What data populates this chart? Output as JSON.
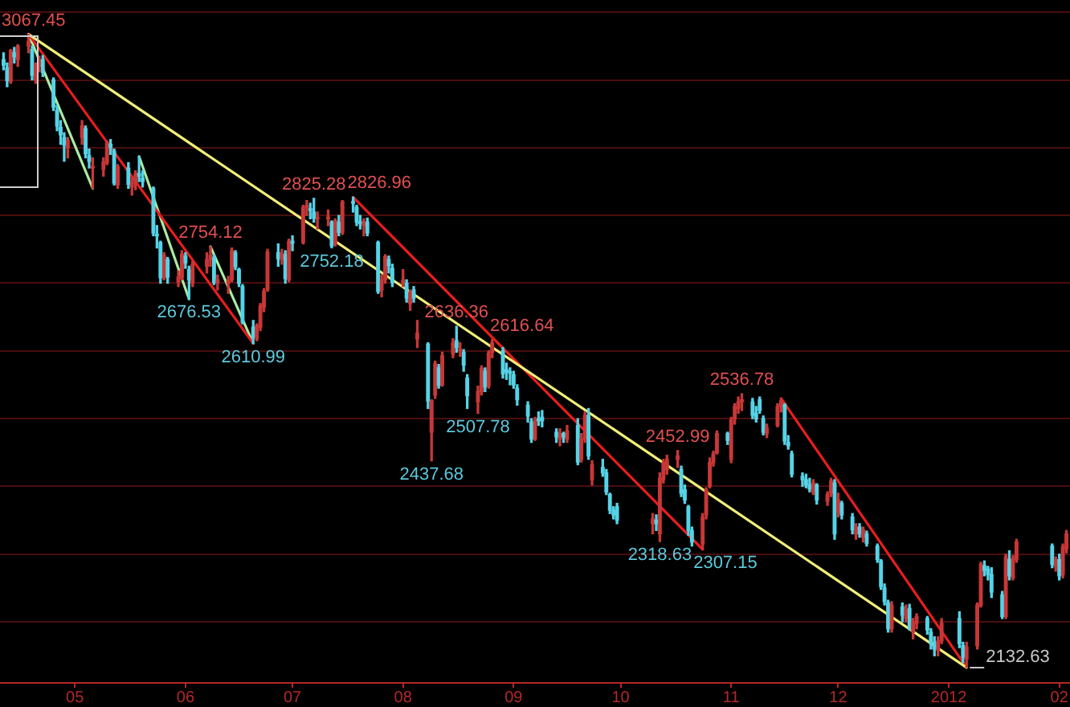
{
  "chart_data": {
    "type": "candlestick",
    "x": [
      "2011-04-11",
      "2011-04-12",
      "2011-04-13",
      "2011-04-14",
      "2011-04-15",
      "2011-04-18",
      "2011-04-19",
      "2011-04-20",
      "2011-04-21",
      "2011-04-22",
      "2011-04-25",
      "2011-04-26",
      "2011-04-27",
      "2011-04-28",
      "2011-04-29",
      "2011-05-03",
      "2011-05-04",
      "2011-05-05",
      "2011-05-06",
      "2011-05-09",
      "2011-05-10",
      "2011-05-11",
      "2011-05-12",
      "2011-05-13",
      "2011-05-16",
      "2011-05-17",
      "2011-05-18",
      "2011-05-19",
      "2011-05-20",
      "2011-05-23",
      "2011-05-24",
      "2011-05-25",
      "2011-05-26",
      "2011-05-27",
      "2011-05-30",
      "2011-05-31",
      "2011-06-01",
      "2011-06-02",
      "2011-06-03",
      "2011-06-07",
      "2011-06-08",
      "2011-06-09",
      "2011-06-10",
      "2011-06-13",
      "2011-06-14",
      "2011-06-15",
      "2011-06-16",
      "2011-06-17",
      "2011-06-20",
      "2011-06-21",
      "2011-06-22",
      "2011-06-23",
      "2011-06-24",
      "2011-06-27",
      "2011-06-28",
      "2011-06-29",
      "2011-06-30",
      "2011-07-01",
      "2011-07-04",
      "2011-07-05",
      "2011-07-06",
      "2011-07-07",
      "2011-07-08",
      "2011-07-11",
      "2011-07-12",
      "2011-07-13",
      "2011-07-14",
      "2011-07-15",
      "2011-07-18",
      "2011-07-19",
      "2011-07-20",
      "2011-07-21",
      "2011-07-22",
      "2011-07-25",
      "2011-07-26",
      "2011-07-27",
      "2011-07-28",
      "2011-07-29",
      "2011-08-01",
      "2011-08-02",
      "2011-08-03",
      "2011-08-04",
      "2011-08-05",
      "2011-08-08",
      "2011-08-09",
      "2011-08-10",
      "2011-08-11",
      "2011-08-12",
      "2011-08-15",
      "2011-08-16",
      "2011-08-17",
      "2011-08-18",
      "2011-08-19",
      "2011-08-22",
      "2011-08-23",
      "2011-08-24",
      "2011-08-25",
      "2011-08-26",
      "2011-08-29",
      "2011-08-30",
      "2011-08-31",
      "2011-09-01",
      "2011-09-02",
      "2011-09-05",
      "2011-09-06",
      "2011-09-07",
      "2011-09-08",
      "2011-09-09",
      "2011-09-13",
      "2011-09-14",
      "2011-09-15",
      "2011-09-16",
      "2011-09-19",
      "2011-09-20",
      "2011-09-21",
      "2011-09-22",
      "2011-09-23",
      "2011-09-26",
      "2011-09-27",
      "2011-09-28",
      "2011-09-29",
      "2011-09-30",
      "2011-10-10",
      "2011-10-11",
      "2011-10-12",
      "2011-10-13",
      "2011-10-14",
      "2011-10-17",
      "2011-10-18",
      "2011-10-19",
      "2011-10-20",
      "2011-10-21",
      "2011-10-24",
      "2011-10-25",
      "2011-10-26",
      "2011-10-27",
      "2011-10-28",
      "2011-10-31",
      "2011-11-01",
      "2011-11-02",
      "2011-11-03",
      "2011-11-04",
      "2011-11-07",
      "2011-11-08",
      "2011-11-09",
      "2011-11-10",
      "2011-11-11",
      "2011-11-14",
      "2011-11-15",
      "2011-11-16",
      "2011-11-17",
      "2011-11-18",
      "2011-11-21",
      "2011-11-22",
      "2011-11-23",
      "2011-11-24",
      "2011-11-25",
      "2011-11-28",
      "2011-11-29",
      "2011-11-30",
      "2011-12-01",
      "2011-12-02",
      "2011-12-05",
      "2011-12-06",
      "2011-12-07",
      "2011-12-08",
      "2011-12-09",
      "2011-12-12",
      "2011-12-13",
      "2011-12-14",
      "2011-12-15",
      "2011-12-16",
      "2011-12-19",
      "2011-12-20",
      "2011-12-21",
      "2011-12-22",
      "2011-12-23",
      "2011-12-26",
      "2011-12-27",
      "2011-12-28",
      "2011-12-29",
      "2011-12-30",
      "2012-01-04",
      "2012-01-05",
      "2012-01-06",
      "2012-01-09",
      "2012-01-10",
      "2012-01-11",
      "2012-01-12",
      "2012-01-13",
      "2012-01-16",
      "2012-01-17",
      "2012-01-18",
      "2012-01-19",
      "2012-01-20",
      "2012-01-30",
      "2012-01-31",
      "2012-02-01",
      "2012-02-02",
      "2012-02-03"
    ],
    "ohlc": [
      [
        3030,
        3040,
        3015,
        3022
      ],
      [
        3018,
        3025,
        2990,
        2999
      ],
      [
        2998,
        3045,
        2995,
        3043
      ],
      [
        3040,
        3048,
        3025,
        3034
      ],
      [
        3030,
        3052,
        3020,
        3050
      ],
      [
        3050,
        3067.45,
        3040,
        3057
      ],
      [
        3045,
        3050,
        3000,
        3007
      ],
      [
        3000,
        3025,
        2995,
        3023
      ],
      [
        3022,
        3035,
        3012,
        3030
      ],
      [
        3030,
        3036,
        3005,
        3011
      ],
      [
        3000,
        3003,
        2955,
        2960
      ],
      [
        2955,
        2962,
        2925,
        2932
      ],
      [
        2930,
        2940,
        2905,
        2919
      ],
      [
        2915,
        2922,
        2880,
        2904
      ],
      [
        2900,
        2915,
        2885,
        2911
      ],
      [
        2915,
        2940,
        2905,
        2932
      ],
      [
        2928,
        2932,
        2885,
        2891
      ],
      [
        2888,
        2898,
        2870,
        2880
      ],
      [
        2870,
        2885,
        2840,
        2872
      ],
      [
        2868,
        2885,
        2858,
        2879
      ],
      [
        2878,
        2910,
        2875,
        2907
      ],
      [
        2905,
        2912,
        2890,
        2900
      ],
      [
        2895,
        2898,
        2845,
        2848
      ],
      [
        2845,
        2875,
        2840,
        2872
      ],
      [
        2870,
        2878,
        2840,
        2846
      ],
      [
        2842,
        2855,
        2830,
        2848
      ],
      [
        2848,
        2866,
        2838,
        2862
      ],
      [
        2862,
        2887,
        2850,
        2858
      ],
      [
        2855,
        2866,
        2842,
        2850
      ],
      [
        2840,
        2842,
        2770,
        2774
      ],
      [
        2772,
        2785,
        2752,
        2770
      ],
      [
        2760,
        2762,
        2700,
        2708
      ],
      [
        2708,
        2745,
        2705,
        2741
      ],
      [
        2735,
        2738,
        2700,
        2709
      ],
      [
        2702,
        2718,
        2695,
        2709
      ],
      [
        2708,
        2748,
        2705,
        2743
      ],
      [
        2740,
        2745,
        2722,
        2730
      ],
      [
        2720,
        2725,
        2676.53,
        2705
      ],
      [
        2700,
        2732,
        2695,
        2728
      ],
      [
        2725,
        2745,
        2715,
        2735
      ],
      [
        2735,
        2754.12,
        2725,
        2741
      ],
      [
        2738,
        2742,
        2698,
        2701
      ],
      [
        2700,
        2712,
        2690,
        2705
      ],
      [
        2700,
        2710,
        2685,
        2704
      ],
      [
        2705,
        2752,
        2702,
        2748
      ],
      [
        2745,
        2748,
        2720,
        2724
      ],
      [
        2720,
        2722,
        2695,
        2700
      ],
      [
        2695,
        2698,
        2640,
        2642
      ],
      [
        2635,
        2645,
        2610.99,
        2621
      ],
      [
        2618,
        2640,
        2615,
        2637
      ],
      [
        2635,
        2670,
        2630,
        2667
      ],
      [
        2665,
        2692,
        2658,
        2688
      ],
      [
        2690,
        2750,
        2688,
        2746
      ],
      [
        2745,
        2758,
        2725,
        2736
      ],
      [
        2735,
        2750,
        2728,
        2744
      ],
      [
        2742,
        2748,
        2700,
        2707
      ],
      [
        2705,
        2765,
        2702,
        2762
      ],
      [
        2762,
        2770,
        2748,
        2759
      ],
      [
        2760,
        2815,
        2758,
        2812
      ],
      [
        2812,
        2822,
        2800,
        2814
      ],
      [
        2810,
        2818,
        2795,
        2807
      ],
      [
        2805,
        2825.28,
        2790,
        2796
      ],
      [
        2795,
        2805,
        2780,
        2797
      ],
      [
        2795,
        2808,
        2785,
        2796
      ],
      [
        2790,
        2792,
        2752.18,
        2755
      ],
      [
        2758,
        2795,
        2755,
        2792
      ],
      [
        2790,
        2800,
        2770,
        2775
      ],
      [
        2775,
        2822,
        2772,
        2820
      ],
      [
        2820,
        2826.96,
        2805,
        2818
      ],
      [
        2812,
        2815,
        2785,
        2790
      ],
      [
        2790,
        2800,
        2780,
        2788
      ],
      [
        2785,
        2795,
        2770,
        2791
      ],
      [
        2790,
        2796,
        2770,
        2774
      ],
      [
        2760,
        2762,
        2685,
        2688
      ],
      [
        2690,
        2712,
        2680,
        2705
      ],
      [
        2705,
        2742,
        2700,
        2739
      ],
      [
        2735,
        2740,
        2715,
        2726
      ],
      [
        2722,
        2728,
        2695,
        2701
      ],
      [
        2700,
        2720,
        2695,
        2705
      ],
      [
        2700,
        2705,
        2672,
        2678
      ],
      [
        2670,
        2690,
        2660,
        2686
      ],
      [
        2690,
        2695,
        2672,
        2678
      ],
      [
        2618,
        2645,
        2605,
        2626
      ],
      [
        2610,
        2612,
        2515,
        2526
      ],
      [
        2480,
        2528,
        2437.68,
        2527
      ],
      [
        2535,
        2585,
        2530,
        2581
      ],
      [
        2575,
        2580,
        2545,
        2549
      ],
      [
        2550,
        2598,
        2548,
        2593
      ],
      [
        2595,
        2618,
        2590,
        2612
      ],
      [
        2615,
        2636.36,
        2598,
        2605
      ],
      [
        2600,
        2612,
        2592,
        2602
      ],
      [
        2598,
        2602,
        2570,
        2579
      ],
      [
        2560,
        2565,
        2515,
        2534
      ],
      [
        2525,
        2548,
        2507.78,
        2540
      ],
      [
        2540,
        2578,
        2535,
        2574
      ],
      [
        2570,
        2575,
        2540,
        2547
      ],
      [
        2548,
        2600,
        2545,
        2597
      ],
      [
        2598,
        2616.64,
        2590,
        2612
      ],
      [
        2600,
        2605,
        2560,
        2566
      ],
      [
        2572,
        2582,
        2558,
        2569
      ],
      [
        2568,
        2575,
        2550,
        2567
      ],
      [
        2565,
        2570,
        2545,
        2550
      ],
      [
        2545,
        2550,
        2520,
        2528
      ],
      [
        2520,
        2525,
        2495,
        2504
      ],
      [
        2495,
        2500,
        2465,
        2470
      ],
      [
        2470,
        2502,
        2468,
        2497
      ],
      [
        2500,
        2510,
        2490,
        2497
      ],
      [
        2502,
        2512,
        2488,
        2497
      ],
      [
        2480,
        2485,
        2465,
        2473
      ],
      [
        2470,
        2485,
        2460,
        2478
      ],
      [
        2478,
        2480,
        2465,
        2473
      ],
      [
        2470,
        2490,
        2465,
        2482
      ],
      [
        2490,
        2500,
        2432,
        2436
      ],
      [
        2440,
        2478,
        2436,
        2470
      ],
      [
        2470,
        2510,
        2465,
        2505
      ],
      [
        2505,
        2515,
        2440,
        2445
      ],
      [
        2410,
        2438,
        2402,
        2432
      ],
      [
        2428,
        2440,
        2415,
        2420
      ],
      [
        2420,
        2425,
        2388,
        2392
      ],
      [
        2388,
        2390,
        2360,
        2365
      ],
      [
        2365,
        2370,
        2352,
        2358
      ],
      [
        2370,
        2375,
        2345,
        2350
      ],
      [
        2345,
        2360,
        2330,
        2352
      ],
      [
        2350,
        2358,
        2335,
        2345
      ],
      [
        2330,
        2420,
        2318.63,
        2412
      ],
      [
        2410,
        2440,
        2405,
        2435
      ],
      [
        2425,
        2446,
        2418,
        2440
      ],
      [
        2440,
        2452.99,
        2428,
        2445
      ],
      [
        2425,
        2430,
        2385,
        2390
      ],
      [
        2395,
        2402,
        2375,
        2380
      ],
      [
        2370,
        2372,
        2328,
        2335
      ],
      [
        2335,
        2340,
        2312,
        2318
      ],
      [
        2315,
        2360,
        2307.15,
        2355
      ],
      [
        2358,
        2398,
        2352,
        2395
      ],
      [
        2400,
        2442,
        2398,
        2435
      ],
      [
        2435,
        2452,
        2430,
        2448
      ],
      [
        2450,
        2482,
        2448,
        2478
      ],
      [
        2478,
        2480,
        2462,
        2468
      ],
      [
        2440,
        2502,
        2435,
        2498
      ],
      [
        2500,
        2522,
        2492,
        2518
      ],
      [
        2515,
        2532,
        2508,
        2525
      ],
      [
        2525,
        2536.78,
        2512,
        2528
      ],
      [
        2525,
        2530,
        2500,
        2505
      ],
      [
        2508,
        2518,
        2495,
        2500
      ],
      [
        2528,
        2532,
        2508,
        2512
      ],
      [
        2500,
        2504,
        2476,
        2480
      ],
      [
        2478,
        2492,
        2472,
        2486
      ],
      [
        2490,
        2522,
        2488,
        2518
      ],
      [
        2518,
        2530,
        2510,
        2526
      ],
      [
        2520,
        2522,
        2462,
        2467
      ],
      [
        2465,
        2475,
        2455,
        2460
      ],
      [
        2448,
        2452,
        2414,
        2418
      ],
      [
        2415,
        2420,
        2400,
        2410
      ],
      [
        2410,
        2418,
        2398,
        2402
      ],
      [
        2402,
        2412,
        2392,
        2396
      ],
      [
        2392,
        2410,
        2388,
        2405
      ],
      [
        2402,
        2404,
        2374,
        2380
      ],
      [
        2378,
        2392,
        2372,
        2388
      ],
      [
        2390,
        2412,
        2385,
        2408
      ],
      [
        2405,
        2410,
        2322,
        2330
      ],
      [
        2362,
        2390,
        2355,
        2380
      ],
      [
        2375,
        2378,
        2352,
        2358
      ],
      [
        2355,
        2360,
        2330,
        2336
      ],
      [
        2330,
        2345,
        2322,
        2340
      ],
      [
        2340,
        2345,
        2325,
        2330
      ],
      [
        2325,
        2340,
        2318,
        2336
      ],
      [
        2330,
        2334,
        2312,
        2316
      ],
      [
        2312,
        2315,
        2288,
        2292
      ],
      [
        2290,
        2292,
        2248,
        2252
      ],
      [
        2250,
        2256,
        2225,
        2230
      ],
      [
        2228,
        2232,
        2185,
        2190
      ],
      [
        2190,
        2230,
        2185,
        2225
      ],
      [
        2222,
        2228,
        2200,
        2210
      ],
      [
        2205,
        2225,
        2200,
        2218
      ],
      [
        2220,
        2226,
        2188,
        2192
      ],
      [
        2185,
        2205,
        2175,
        2200
      ],
      [
        2198,
        2212,
        2190,
        2208
      ],
      [
        2205,
        2208,
        2182,
        2188
      ],
      [
        2185,
        2190,
        2160,
        2168
      ],
      [
        2170,
        2178,
        2150,
        2160
      ],
      [
        2158,
        2178,
        2150,
        2172
      ],
      [
        2172,
        2205,
        2168,
        2198
      ],
      [
        2205,
        2215,
        2162,
        2168
      ],
      [
        2165,
        2170,
        2140,
        2148
      ],
      [
        2145,
        2170,
        2132.63,
        2163
      ],
      [
        2165,
        2228,
        2160,
        2225
      ],
      [
        2225,
        2288,
        2222,
        2285
      ],
      [
        2283,
        2290,
        2268,
        2276
      ],
      [
        2278,
        2282,
        2262,
        2270
      ],
      [
        2270,
        2280,
        2236,
        2244
      ],
      [
        2240,
        2245,
        2205,
        2208
      ],
      [
        2208,
        2300,
        2205,
        2296
      ],
      [
        2292,
        2305,
        2262,
        2268
      ],
      [
        2265,
        2298,
        2262,
        2294
      ],
      [
        2292,
        2322,
        2288,
        2318
      ],
      [
        2312,
        2315,
        2280,
        2285
      ],
      [
        2282,
        2296,
        2275,
        2292
      ],
      [
        2292,
        2300,
        2262,
        2268
      ],
      [
        2270,
        2315,
        2265,
        2311
      ],
      [
        2308,
        2335,
        2302,
        2330
      ]
    ],
    "colors": [
      "#56d3e6",
      "#56d3e6",
      "#c83737",
      "#56d3e6",
      "#c83737",
      "#c83737",
      "#56d3e6",
      "#c83737",
      "#c83737",
      "#56d3e6",
      "#56d3e6",
      "#56d3e6",
      "#56d3e6",
      "#56d3e6",
      "#c83737",
      "#c83737",
      "#56d3e6",
      "#56d3e6",
      "#c83737",
      "#c83737",
      "#c83737",
      "#56d3e6",
      "#56d3e6",
      "#c83737",
      "#56d3e6",
      "#c83737",
      "#c83737",
      "#56d3e6",
      "#56d3e6",
      "#56d3e6",
      "#56d3e6",
      "#56d3e6",
      "#c83737",
      "#56d3e6",
      "#c83737",
      "#c83737",
      "#56d3e6",
      "#56d3e6",
      "#c83737",
      "#c83737",
      "#c83737",
      "#56d3e6",
      "#c83737",
      "#c83737",
      "#c83737",
      "#56d3e6",
      "#56d3e6",
      "#56d3e6",
      "#56d3e6",
      "#c83737",
      "#c83737",
      "#c83737",
      "#c83737",
      "#56d3e6",
      "#c83737",
      "#56d3e6",
      "#c83737",
      "#56d3e6",
      "#c83737",
      "#c83737",
      "#56d3e6",
      "#56d3e6",
      "#c83737",
      "#c83737",
      "#56d3e6",
      "#c83737",
      "#56d3e6",
      "#c83737",
      "#56d3e6",
      "#56d3e6",
      "#56d3e6",
      "#c83737",
      "#56d3e6",
      "#56d3e6",
      "#c83737",
      "#c83737",
      "#56d3e6",
      "#56d3e6",
      "#c83737",
      "#56d3e6",
      "#c83737",
      "#56d3e6",
      "#c83737",
      "#56d3e6",
      "#c83737",
      "#c83737",
      "#56d3e6",
      "#c83737",
      "#c83737",
      "#56d3e6",
      "#c83737",
      "#56d3e6",
      "#56d3e6",
      "#c83737",
      "#c83737",
      "#56d3e6",
      "#c83737",
      "#c83737",
      "#56d3e6",
      "#56d3e6",
      "#56d3e6",
      "#56d3e6",
      "#56d3e6",
      "#56d3e6",
      "#56d3e6",
      "#c83737",
      "#56d3e6",
      "#56d3e6",
      "#56d3e6",
      "#c83737",
      "#56d3e6",
      "#c83737",
      "#56d3e6",
      "#c83737",
      "#c83737",
      "#56d3e6",
      "#c83737",
      "#56d3e6",
      "#56d3e6",
      "#56d3e6",
      "#56d3e6",
      "#56d3e6",
      "#c83737",
      "#56d3e6",
      "#c83737",
      "#c83737",
      "#c83737",
      "#c83737",
      "#56d3e6",
      "#56d3e6",
      "#56d3e6",
      "#56d3e6",
      "#c83737",
      "#c83737",
      "#c83737",
      "#c83737",
      "#c83737",
      "#56d3e6",
      "#c83737",
      "#c83737",
      "#c83737",
      "#c83737",
      "#56d3e6",
      "#56d3e6",
      "#56d3e6",
      "#56d3e6",
      "#c83737",
      "#c83737",
      "#c83737",
      "#56d3e6",
      "#56d3e6",
      "#56d3e6",
      "#56d3e6",
      "#56d3e6",
      "#56d3e6",
      "#c83737",
      "#56d3e6",
      "#c83737",
      "#c83737",
      "#56d3e6",
      "#c83737",
      "#56d3e6",
      "#56d3e6",
      "#c83737",
      "#56d3e6",
      "#c83737",
      "#56d3e6",
      "#56d3e6",
      "#56d3e6",
      "#56d3e6",
      "#56d3e6",
      "#c83737",
      "#56d3e6",
      "#c83737",
      "#56d3e6",
      "#c83737",
      "#c83737",
      "#56d3e6",
      "#56d3e6",
      "#56d3e6",
      "#c83737",
      "#c83737",
      "#56d3e6",
      "#56d3e6",
      "#c83737",
      "#c83737",
      "#c83737",
      "#56d3e6",
      "#56d3e6",
      "#56d3e6",
      "#56d3e6",
      "#c83737",
      "#56d3e6",
      "#c83737",
      "#c83737",
      "#56d3e6",
      "#c83737",
      "#56d3e6",
      "#c83737",
      "#c83737"
    ],
    "series": [
      {
        "type": "line",
        "x": [
          "2011-04-18",
          "2012-01-06"
        ],
        "values": [
          3067.45,
          2132.63
        ],
        "color": "#f0ee78"
      },
      {
        "type": "line",
        "x": [
          "2011-04-18",
          "2011-06-20"
        ],
        "values": [
          3067.45,
          2610.99
        ],
        "color": "#e61e1e"
      },
      {
        "type": "line",
        "x": [
          "2011-07-18",
          "2011-10-24"
        ],
        "values": [
          2826.96,
          2307.15
        ],
        "color": "#e61e1e"
      },
      {
        "type": "line",
        "x": [
          "2011-11-15",
          "2012-01-06"
        ],
        "values": [
          2530,
          2132.63
        ],
        "color": "#e61e1e"
      },
      {
        "type": "line",
        "x": [
          "2011-04-18",
          "2011-05-06"
        ],
        "values": [
          3067.45,
          2840
        ],
        "color": "#a8eca0"
      },
      {
        "type": "line",
        "x": [
          "2011-05-19",
          "2011-06-02"
        ],
        "values": [
          2887,
          2676.53
        ],
        "color": "#a8eca0"
      },
      {
        "type": "line",
        "x": [
          "2011-06-08",
          "2011-06-20"
        ],
        "values": [
          2754.12,
          2610.99
        ],
        "color": "#a8eca0"
      }
    ],
    "xlim": [
      "2011-04-10",
      "2012-02-04"
    ],
    "ylim": [
      2110,
      3118
    ],
    "yticks": [
      {
        "value": 2200,
        "label": null
      },
      {
        "value": 2300,
        "label": null
      },
      {
        "value": 2400,
        "label": null
      },
      {
        "value": 2500,
        "label": null
      },
      {
        "value": 2600,
        "label": null
      },
      {
        "value": 2700,
        "label": null
      },
      {
        "value": 2800,
        "label": null
      },
      {
        "value": 2900,
        "label": null
      },
      {
        "value": 3000,
        "label": null
      },
      {
        "value": 3100,
        "label": null
      }
    ],
    "xticks": [
      {
        "value": "2011-05-01",
        "label": "05"
      },
      {
        "value": "2011-06-01",
        "label": "06"
      },
      {
        "value": "2011-07-01",
        "label": "07"
      },
      {
        "value": "2011-08-01",
        "label": "08"
      },
      {
        "value": "2011-09-01",
        "label": "09"
      },
      {
        "value": "2011-10-01",
        "label": "10"
      },
      {
        "value": "2011-11-01",
        "label": "11"
      },
      {
        "value": "2011-12-01",
        "label": "12"
      },
      {
        "value": "2012-01-01",
        "label": "2012"
      },
      {
        "value": "2012-02-01",
        "label": "02"
      }
    ],
    "grid": "y",
    "tick_labels": "x",
    "annotations": [
      {
        "text": "3067.45",
        "x": "2011-04-18",
        "y": 3067.45
      },
      {
        "text": "2676.53",
        "x": "2011-06-02",
        "y": 2676.53
      },
      {
        "text": "2754.12",
        "x": "2011-06-08",
        "y": 2754.12
      },
      {
        "text": "2610.99",
        "x": "2011-06-20",
        "y": 2610.99
      },
      {
        "text": "2825.28",
        "x": "2011-07-07",
        "y": 2825.28
      },
      {
        "text": "2752.18",
        "x": "2011-07-12",
        "y": 2752.18
      },
      {
        "text": "2826.96",
        "x": "2011-07-18",
        "y": 2826.96
      },
      {
        "text": "2437.68",
        "x": "2011-08-09",
        "y": 2437.68
      },
      {
        "text": "2636.36",
        "x": "2011-08-16",
        "y": 2636.36
      },
      {
        "text": "2507.78",
        "x": "2011-08-22",
        "y": 2507.78
      },
      {
        "text": "2616.64",
        "x": "2011-08-26",
        "y": 2616.64
      },
      {
        "text": "2318.63",
        "x": "2011-10-12",
        "y": 2318.63
      },
      {
        "text": "2452.99",
        "x": "2011-10-17",
        "y": 2452.99
      },
      {
        "text": "2307.15",
        "x": "2011-10-24",
        "y": 2307.15
      },
      {
        "text": "2536.78",
        "x": "2011-11-04",
        "y": 2536.78
      },
      {
        "text": "2132.63",
        "x": "2012-01-06",
        "y": 2132.63
      }
    ]
  }
}
